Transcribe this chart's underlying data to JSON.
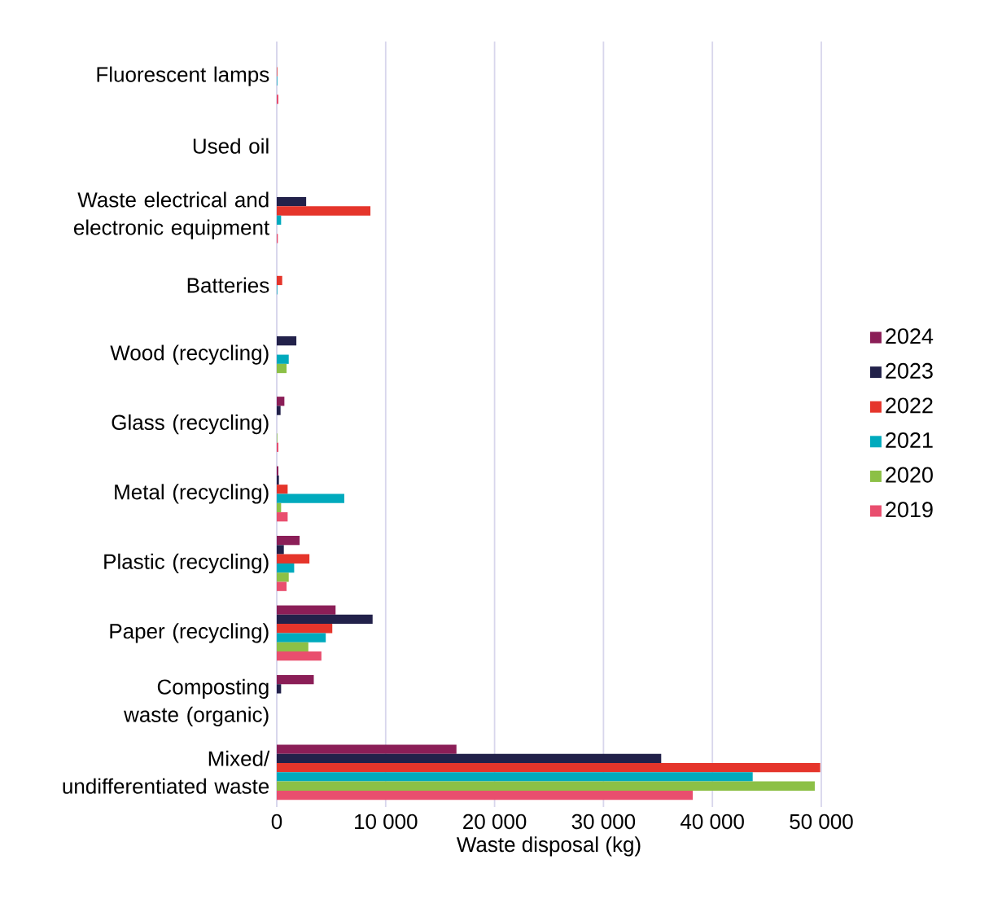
{
  "chart_data": {
    "type": "bar",
    "orientation": "horizontal",
    "xlabel": "Waste disposal (kg)",
    "categories": [
      "Fluorescent lamps",
      "Used oil",
      "Waste electrical and electronic equipment",
      "Batteries",
      "Wood (recycling)",
      "Glass (recycling)",
      "Metal (recycling)",
      "Plastic (recycling)",
      "Paper (recycling)",
      "Composting waste (organic)",
      "Mixed/ undifferentiated waste"
    ],
    "series": [
      {
        "name": "2024",
        "color": "#8b1e57",
        "values": [
          null,
          null,
          null,
          null,
          null,
          700,
          150,
          2100,
          5400,
          3400,
          16500
        ]
      },
      {
        "name": "2023",
        "color": "#22214a",
        "values": [
          null,
          null,
          2700,
          null,
          1800,
          350,
          200,
          650,
          8800,
          400,
          35300
        ]
      },
      {
        "name": "2022",
        "color": "#e5352b",
        "values": [
          50,
          null,
          8600,
          500,
          null,
          null,
          1000,
          3000,
          5100,
          null,
          49900
        ]
      },
      {
        "name": "2021",
        "color": "#00aabd",
        "values": [
          50,
          null,
          400,
          50,
          1100,
          null,
          6200,
          1600,
          4500,
          null,
          43700
        ]
      },
      {
        "name": "2020",
        "color": "#8cc046",
        "values": [
          null,
          null,
          null,
          null,
          900,
          50,
          400,
          1100,
          2900,
          null,
          49400
        ]
      },
      {
        "name": "2019",
        "color": "#e94e6e",
        "values": [
          150,
          null,
          100,
          null,
          null,
          150,
          1000,
          900,
          4100,
          null,
          38200
        ]
      }
    ],
    "xlim": [
      0,
      50000
    ],
    "xticks": [
      0,
      {
        "value": 10000,
        "label": "10 000"
      },
      {
        "value": 20000,
        "label": "20 000"
      },
      {
        "value": 30000,
        "label": "30 000"
      },
      {
        "value": 40000,
        "label": "40 000"
      },
      {
        "value": 50000,
        "label": "50 000"
      }
    ],
    "grid": "x",
    "legend": "right"
  }
}
